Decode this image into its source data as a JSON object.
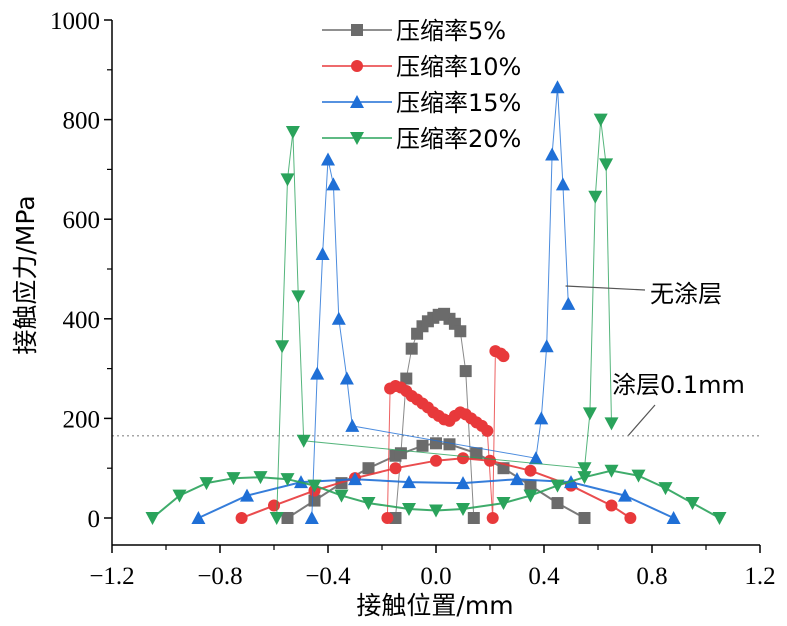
{
  "chart_data": {
    "type": "line",
    "xlabel": "接触位置/mm",
    "ylabel": "接触应力/MPa",
    "xlim": [
      -1.2,
      1.2
    ],
    "ylim": [
      0,
      1000
    ],
    "xticks": [
      -1.2,
      -0.8,
      -0.4,
      0.0,
      0.4,
      0.8,
      1.2
    ],
    "yticks": [
      0,
      200,
      400,
      600,
      800,
      1000
    ],
    "xtick_labels": [
      "−1.2",
      "−0.8",
      "−0.4",
      "0.0",
      "0.4",
      "0.8",
      "1.2"
    ],
    "ytick_labels": [
      "0",
      "200",
      "400",
      "600",
      "800",
      "1000"
    ],
    "grid": false,
    "legend_position": "top-center",
    "reference_line": {
      "y": 165,
      "style": "dotted"
    },
    "annotations": [
      {
        "text": "无涂层",
        "points_to": [
          0.48,
          500
        ]
      },
      {
        "text": "涂层0.1mm",
        "points_to": [
          0.72,
          170
        ]
      }
    ],
    "series": [
      {
        "name": "压缩率5%",
        "marker": "square",
        "color": "#6b6b6b",
        "uncoated": {
          "x": [
            -0.15,
            -0.13,
            -0.11,
            -0.09,
            -0.07,
            -0.05,
            -0.03,
            -0.01,
            0.01,
            0.03,
            0.05,
            0.07,
            0.09,
            0.11,
            0.14
          ],
          "y": [
            0,
            130,
            280,
            340,
            370,
            385,
            395,
            402,
            408,
            410,
            400,
            390,
            375,
            295,
            0
          ]
        },
        "coated": {
          "x": [
            -0.55,
            -0.45,
            -0.35,
            -0.25,
            -0.15,
            -0.05,
            0.0,
            0.05,
            0.15,
            0.25,
            0.35,
            0.45,
            0.55
          ],
          "y": [
            0,
            35,
            70,
            100,
            125,
            145,
            150,
            148,
            130,
            100,
            65,
            30,
            0
          ]
        }
      },
      {
        "name": "压缩率10%",
        "marker": "circle",
        "color": "#e8393b",
        "uncoated": {
          "x": [
            -0.18,
            -0.17,
            -0.15,
            -0.13,
            -0.11,
            -0.09,
            -0.07,
            -0.05,
            -0.03,
            -0.01,
            0.01,
            0.03,
            0.05,
            0.07,
            0.09,
            0.11,
            0.13,
            0.15,
            0.17,
            0.19,
            0.21,
            0.22,
            0.24,
            0.25
          ],
          "y": [
            0,
            260,
            265,
            262,
            255,
            245,
            238,
            230,
            222,
            212,
            205,
            198,
            195,
            205,
            212,
            208,
            200,
            192,
            185,
            175,
            0,
            335,
            330,
            325
          ]
        },
        "coated": {
          "x": [
            -0.72,
            -0.6,
            -0.45,
            -0.3,
            -0.15,
            0.0,
            0.1,
            0.2,
            0.35,
            0.5,
            0.65,
            0.72
          ],
          "y": [
            0,
            25,
            55,
            80,
            100,
            115,
            120,
            115,
            95,
            65,
            25,
            0
          ]
        }
      },
      {
        "name": "压缩率15%",
        "marker": "triangle-up",
        "color": "#1f6fd6",
        "uncoated": {
          "x": [
            -0.46,
            -0.44,
            -0.42,
            -0.4,
            -0.38,
            -0.36,
            -0.33,
            -0.31,
            0.37,
            0.39,
            0.41,
            0.43,
            0.45,
            0.47,
            0.49
          ],
          "y": [
            0,
            290,
            530,
            720,
            670,
            400,
            280,
            185,
            120,
            200,
            345,
            730,
            865,
            670,
            430
          ]
        },
        "coated": {
          "x": [
            -0.88,
            -0.7,
            -0.5,
            -0.3,
            -0.1,
            0.1,
            0.3,
            0.5,
            0.7,
            0.88
          ],
          "y": [
            0,
            45,
            72,
            78,
            72,
            70,
            78,
            72,
            45,
            0
          ]
        }
      },
      {
        "name": "压缩率20%",
        "marker": "triangle-down",
        "color": "#2aa35b",
        "uncoated": {
          "x": [
            -0.59,
            -0.57,
            -0.55,
            -0.53,
            -0.51,
            -0.49,
            0.55,
            0.57,
            0.59,
            0.61,
            0.63,
            0.65
          ],
          "y": [
            0,
            345,
            680,
            775,
            445,
            155,
            100,
            210,
            645,
            800,
            710,
            190
          ]
        },
        "coated": {
          "x": [
            -1.05,
            -0.95,
            -0.85,
            -0.75,
            -0.65,
            -0.55,
            -0.45,
            -0.35,
            -0.25,
            -0.1,
            0.0,
            0.1,
            0.25,
            0.35,
            0.45,
            0.55,
            0.65,
            0.75,
            0.85,
            0.95,
            1.05
          ],
          "y": [
            0,
            45,
            70,
            80,
            82,
            78,
            65,
            45,
            30,
            18,
            15,
            18,
            30,
            45,
            65,
            82,
            95,
            85,
            60,
            30,
            0
          ]
        }
      }
    ]
  }
}
